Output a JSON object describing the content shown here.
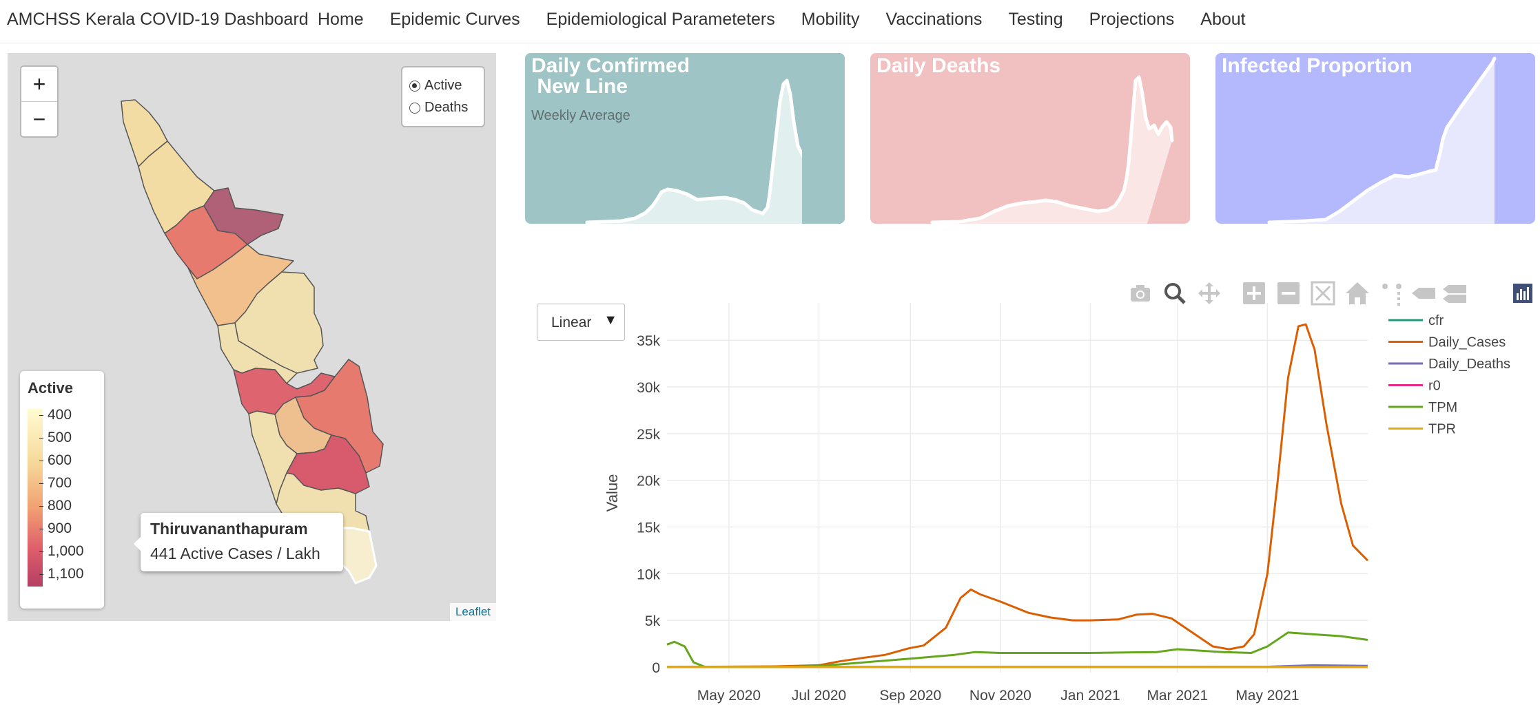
{
  "nav": {
    "brand": "AMCHSS Kerala COVID-19 Dashboard",
    "links": [
      "Home",
      "Epidemic Curves",
      "Epidemiological Parameteters",
      "Mobility",
      "Vaccinations",
      "Testing",
      "Projections",
      "About"
    ]
  },
  "map": {
    "zoom_in": "+",
    "zoom_out": "−",
    "radio_active": "Active",
    "radio_deaths": "Deaths",
    "legend_title": "Active",
    "legend_ticks": [
      "400",
      "500",
      "600",
      "700",
      "800",
      "900",
      "1,000",
      "1,100"
    ],
    "tooltip_title": "Thiruvananthapuram",
    "tooltip_value": "441 Active Cases / Lakh",
    "attribution": "Leaflet",
    "colors": {
      "background": "#dcdcdc",
      "district_border": "#555555"
    }
  },
  "cards": [
    {
      "title": "Daily Confirmed\n New Line",
      "subtitle": "Weekly Average",
      "bg": "#9fc4c5",
      "fill": "#e2efef"
    },
    {
      "title": "Daily Deaths",
      "subtitle": "",
      "bg": "#f1c1c2",
      "fill": "#fbe6e6"
    },
    {
      "title": "Infected Proportion",
      "subtitle": "",
      "bg": "#b3b9fc",
      "fill": "#e7e8fd"
    }
  ],
  "scale_select": {
    "value": "Linear"
  },
  "modebar": [
    "camera-icon",
    "zoom-icon",
    "pan-icon",
    "zoom-in-icon",
    "zoom-out-icon",
    "autoscale-icon",
    "reset-axes-icon",
    "spike-lines-icon",
    "hover-closest-icon",
    "hover-compare-icon",
    "plotly-logo-icon"
  ],
  "chart_data": {
    "type": "line",
    "ylabel": "Value",
    "xlabel": "",
    "x_ticks": [
      "May 2020",
      "Jul 2020",
      "Sep 2020",
      "Nov 2020",
      "Jan 2021",
      "Mar 2021",
      "May 2021"
    ],
    "y_ticks": [
      "0",
      "5k",
      "10k",
      "15k",
      "20k",
      "25k",
      "30k",
      "35k"
    ],
    "ylim": [
      -600,
      39000
    ],
    "xlim": [
      "2020-03-20",
      "2021-07-08"
    ],
    "legend": "right",
    "grid": true,
    "series": [
      {
        "name": "cfr",
        "color": "#1b9e77",
        "points": [
          [
            "2020-03-20",
            0
          ],
          [
            "2021-07-08",
            0
          ]
        ]
      },
      {
        "name": "Daily_Cases",
        "color": "#d95f02",
        "points": [
          [
            "2020-03-20",
            0
          ],
          [
            "2020-06-01",
            60
          ],
          [
            "2020-07-01",
            180
          ],
          [
            "2020-07-15",
            600
          ],
          [
            "2020-08-01",
            1000
          ],
          [
            "2020-08-15",
            1300
          ],
          [
            "2020-08-31",
            2000
          ],
          [
            "2020-09-10",
            2300
          ],
          [
            "2020-09-25",
            4200
          ],
          [
            "2020-10-05",
            7400
          ],
          [
            "2020-10-12",
            8300
          ],
          [
            "2020-10-18",
            7800
          ],
          [
            "2020-11-01",
            7000
          ],
          [
            "2020-11-20",
            5800
          ],
          [
            "2020-12-05",
            5300
          ],
          [
            "2020-12-20",
            5000
          ],
          [
            "2021-01-01",
            5000
          ],
          [
            "2021-01-20",
            5100
          ],
          [
            "2021-02-01",
            5600
          ],
          [
            "2021-02-12",
            5700
          ],
          [
            "2021-02-25",
            5200
          ],
          [
            "2021-03-10",
            3800
          ],
          [
            "2021-03-25",
            2200
          ],
          [
            "2021-04-05",
            1900
          ],
          [
            "2021-04-15",
            2200
          ],
          [
            "2021-04-22",
            3500
          ],
          [
            "2021-05-01",
            10000
          ],
          [
            "2021-05-08",
            20000
          ],
          [
            "2021-05-15",
            31000
          ],
          [
            "2021-05-22",
            36500
          ],
          [
            "2021-05-27",
            36700
          ],
          [
            "2021-06-02",
            34000
          ],
          [
            "2021-06-10",
            26000
          ],
          [
            "2021-06-20",
            17500
          ],
          [
            "2021-06-28",
            13000
          ],
          [
            "2021-07-08",
            11400
          ]
        ]
      },
      {
        "name": "Daily_Deaths",
        "color": "#7570b3",
        "points": [
          [
            "2020-03-20",
            0
          ],
          [
            "2021-05-01",
            30
          ],
          [
            "2021-06-01",
            180
          ],
          [
            "2021-07-08",
            120
          ]
        ]
      },
      {
        "name": "r0",
        "color": "#e7298a",
        "points": [
          [
            "2020-03-20",
            0
          ],
          [
            "2021-07-08",
            0
          ]
        ]
      },
      {
        "name": "TPM",
        "color": "#66a61e",
        "points": [
          [
            "2020-03-20",
            2400
          ],
          [
            "2020-03-25",
            2700
          ],
          [
            "2020-04-01",
            2200
          ],
          [
            "2020-04-07",
            500
          ],
          [
            "2020-04-15",
            0
          ],
          [
            "2020-06-01",
            0
          ],
          [
            "2020-07-01",
            100
          ],
          [
            "2020-08-01",
            500
          ],
          [
            "2020-09-01",
            900
          ],
          [
            "2020-10-01",
            1300
          ],
          [
            "2020-10-15",
            1600
          ],
          [
            "2020-11-01",
            1500
          ],
          [
            "2021-01-01",
            1500
          ],
          [
            "2021-02-15",
            1600
          ],
          [
            "2021-03-01",
            1900
          ],
          [
            "2021-04-01",
            1600
          ],
          [
            "2021-04-20",
            1500
          ],
          [
            "2021-05-01",
            2200
          ],
          [
            "2021-05-15",
            3700
          ],
          [
            "2021-06-01",
            3500
          ],
          [
            "2021-06-20",
            3300
          ],
          [
            "2021-07-08",
            2900
          ]
        ]
      },
      {
        "name": "TPR",
        "color": "#e6ab02",
        "points": [
          [
            "2020-03-20",
            0
          ],
          [
            "2021-07-08",
            0
          ]
        ]
      }
    ]
  }
}
